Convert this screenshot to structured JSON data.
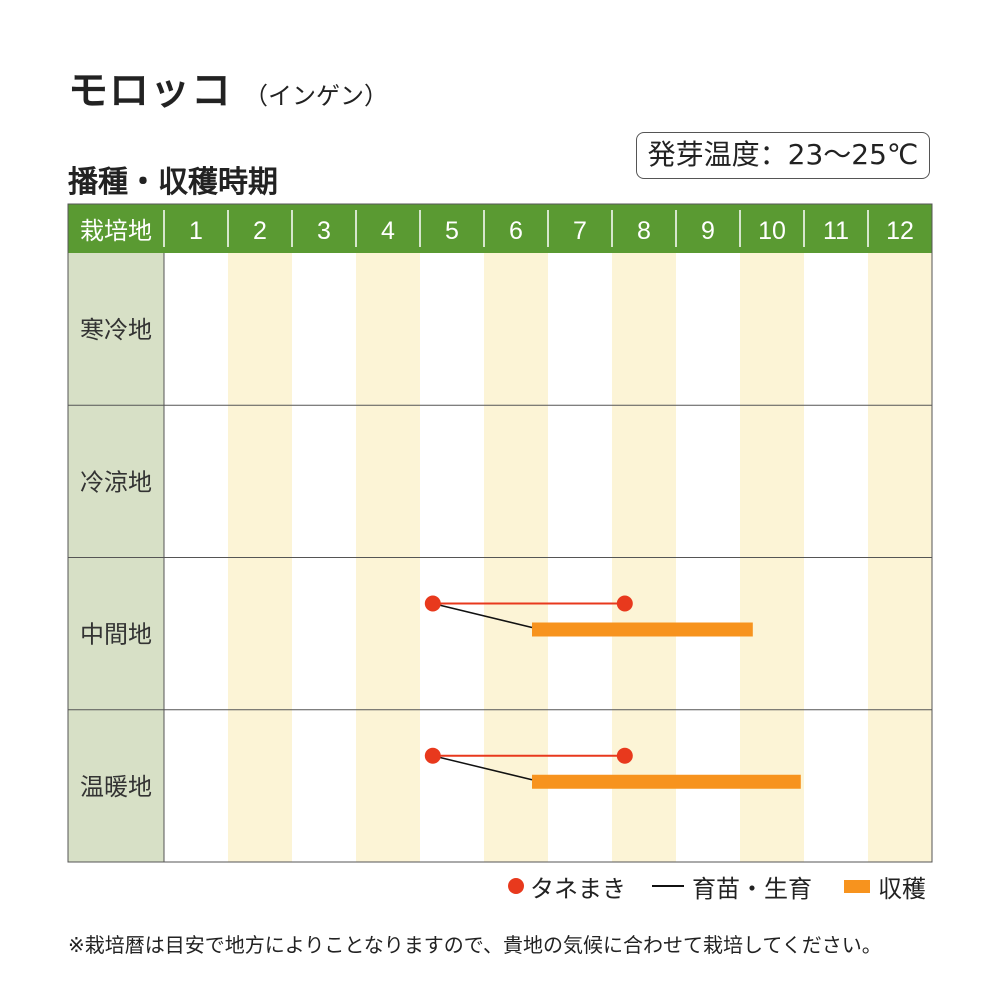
{
  "page": {
    "title": "モロッコ",
    "title_sub": "（インゲン）",
    "section_title": "播種・収穫時期",
    "temperature_box": "発芽温度：23〜25℃",
    "note": "※栽培暦は目安で地方によりことなりますので、貴地の気候に合わせて栽培してください。"
  },
  "chart_data": {
    "type": "gantt",
    "header_label": "栽培地",
    "months": [
      "1",
      "2",
      "3",
      "4",
      "5",
      "6",
      "7",
      "8",
      "9",
      "10",
      "11",
      "12"
    ],
    "rows": [
      {
        "region": "寒冷地",
        "tasks": []
      },
      {
        "region": "冷涼地",
        "tasks": []
      },
      {
        "region": "中間地",
        "tasks": [
          {
            "type": "sowing",
            "start": 5.2,
            "end": 8.2
          },
          {
            "type": "seedling",
            "from": 5.2,
            "to": 6.75
          },
          {
            "type": "harvest",
            "start": 6.75,
            "end": 10.2
          }
        ]
      },
      {
        "region": "温暖地",
        "tasks": [
          {
            "type": "sowing",
            "start": 5.2,
            "end": 8.2
          },
          {
            "type": "seedling",
            "from": 5.2,
            "to": 6.75
          },
          {
            "type": "harvest",
            "start": 6.75,
            "end": 10.95
          }
        ]
      }
    ],
    "legend": {
      "sowing": "タネまき",
      "seedling": "育苗・生育",
      "harvest": "収穫"
    },
    "colors": {
      "header": "#5a9a32",
      "region_col": "#d7e0c6",
      "even_month": "#fcf4d6",
      "sowing": "#e8391d",
      "seedling": "#111111",
      "harvest": "#f7931e"
    }
  }
}
